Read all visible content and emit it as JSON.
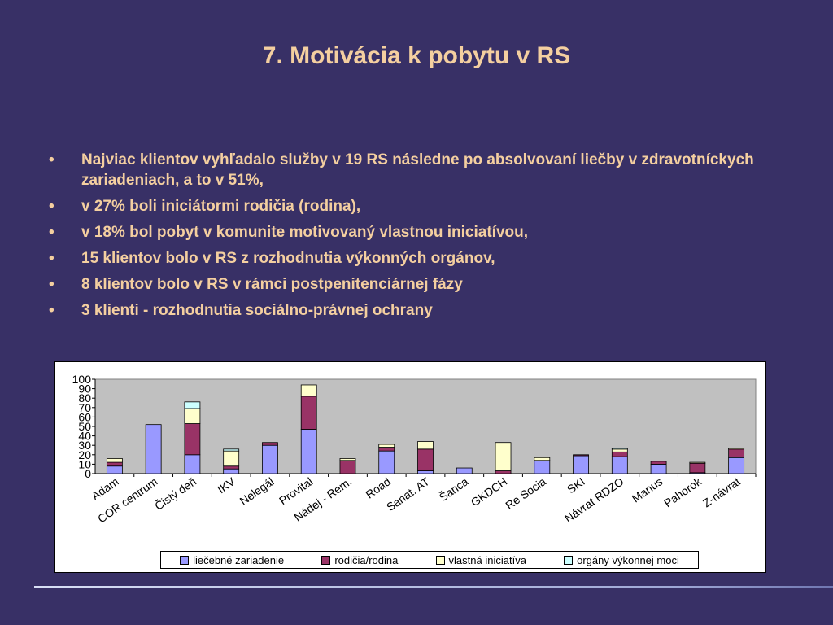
{
  "slide": {
    "title": "7. Motivácia k pobytu v RS",
    "bullets": [
      "Najviac klientov vyhľadalo služby  v 19  RS následne po absolvovaní liečby v zdravotníckych zariadeniach, a to  v 51%,",
      "v 27% boli iniciátormi rodičia (rodina),",
      "v 18% bol pobyt v komunite motivovaný vlastnou iniciatívou,",
      "15 klientov  bolo v RS  z rozhodnutia  výkonných orgánov,",
      "8 klientov bolo v RS v rámci postpenitenciárnej fázy",
      "3 klienti - rozhodnutia sociálno-právnej ochrany"
    ]
  },
  "chart_data": {
    "type": "bar",
    "stacked": true,
    "categories": [
      "Adam",
      "COR centrum",
      "Čistý deň",
      "IKV",
      "Nelegál",
      "Provital",
      "Nádej - Rem.",
      "Road",
      "Sanat. AT",
      "Šanca",
      "GKDCH",
      "Re Socia",
      "SKI",
      "Návrat RDZO",
      "Manus",
      "Pahorok",
      "Z-návrat"
    ],
    "series": [
      {
        "name": "liečebné zariadenie",
        "color": "#9999ff",
        "values": [
          8,
          52,
          20,
          5,
          30,
          47,
          0,
          24,
          3,
          6,
          0,
          14,
          19,
          18,
          10,
          1,
          17
        ]
      },
      {
        "name": "rodičia/rodina",
        "color": "#993366",
        "values": [
          4,
          0,
          33,
          3,
          3,
          35,
          14,
          4,
          23,
          0,
          3,
          0,
          1,
          5,
          3,
          10,
          9
        ]
      },
      {
        "name": "vlastná iniciatíva",
        "color": "#ffffcc",
        "values": [
          4,
          0,
          16,
          16,
          0,
          12,
          2,
          3,
          8,
          0,
          30,
          3,
          0,
          3,
          0,
          1,
          1
        ]
      },
      {
        "name": "orgány výkonnej moci",
        "color": "#ccffff",
        "values": [
          0,
          0,
          7,
          2,
          0,
          0,
          0,
          0,
          0,
          0,
          0,
          0,
          0,
          1,
          0,
          0,
          0
        ]
      }
    ],
    "ylim": [
      0,
      100
    ],
    "yticks": [
      0,
      10,
      20,
      30,
      40,
      50,
      60,
      70,
      80,
      90,
      100
    ],
    "plot_background": "#c0c0c0",
    "grid": false,
    "legend_position": "bottom"
  }
}
